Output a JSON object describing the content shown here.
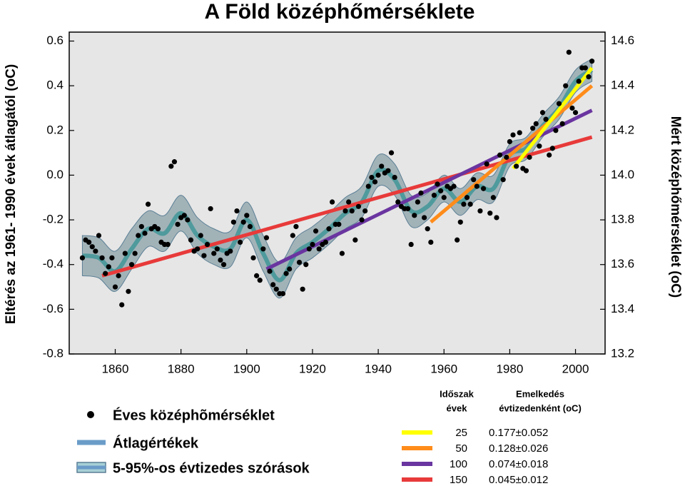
{
  "chart_data": {
    "type": "scatter",
    "title": "A Föld középhőmérséklete",
    "y_label": "Eltérés az 1961- 1990 évek átlagától (oC)",
    "y2_label": "Mért középhőmérséklet (oC)",
    "xlim": [
      1846,
      2009
    ],
    "ylim": [
      -0.8,
      0.64
    ],
    "y2lim": [
      13.2,
      14.64
    ],
    "xticks": [
      1860,
      1880,
      1900,
      1920,
      1940,
      1960,
      1980,
      2000
    ],
    "yticks": [
      0.6,
      0.4,
      0.2,
      {
        "value": 0,
        "label": "0.0"
      },
      -0.2,
      -0.4,
      -0.6,
      -0.8
    ],
    "y2ticks": [
      14.6,
      14.4,
      14.2,
      {
        "value": 14,
        "label": "14.0"
      },
      13.8,
      13.6,
      13.4,
      13.2
    ],
    "series": [
      {
        "name": "Éves középhõmérséklet",
        "color": "#000000",
        "x": [
          1850,
          1851,
          1852,
          1853,
          1854,
          1855,
          1856,
          1857,
          1858,
          1859,
          1860,
          1861,
          1862,
          1863,
          1864,
          1865,
          1866,
          1867,
          1868,
          1869,
          1870,
          1871,
          1872,
          1873,
          1874,
          1875,
          1876,
          1877,
          1878,
          1879,
          1880,
          1881,
          1882,
          1883,
          1884,
          1885,
          1886,
          1887,
          1888,
          1889,
          1890,
          1891,
          1892,
          1893,
          1894,
          1895,
          1896,
          1897,
          1898,
          1899,
          1900,
          1901,
          1902,
          1903,
          1904,
          1905,
          1906,
          1907,
          1908,
          1909,
          1910,
          1911,
          1912,
          1913,
          1914,
          1915,
          1916,
          1917,
          1918,
          1919,
          1920,
          1921,
          1922,
          1923,
          1924,
          1925,
          1926,
          1927,
          1928,
          1929,
          1930,
          1931,
          1932,
          1933,
          1934,
          1935,
          1936,
          1937,
          1938,
          1939,
          1940,
          1941,
          1942,
          1943,
          1944,
          1945,
          1946,
          1947,
          1948,
          1949,
          1950,
          1951,
          1952,
          1953,
          1954,
          1955,
          1956,
          1957,
          1958,
          1959,
          1960,
          1961,
          1962,
          1963,
          1964,
          1965,
          1966,
          1967,
          1968,
          1969,
          1970,
          1971,
          1972,
          1973,
          1974,
          1975,
          1976,
          1977,
          1978,
          1979,
          1980,
          1981,
          1982,
          1983,
          1984,
          1985,
          1986,
          1987,
          1988,
          1989,
          1990,
          1991,
          1992,
          1993,
          1994,
          1995,
          1996,
          1997,
          1998,
          1999,
          2000,
          2001,
          2002,
          2003,
          2004,
          2005
        ],
        "values": [
          -0.37,
          -0.29,
          -0.3,
          -0.32,
          -0.34,
          -0.27,
          -0.37,
          -0.44,
          -0.41,
          -0.37,
          -0.5,
          -0.45,
          -0.58,
          -0.35,
          -0.52,
          -0.4,
          -0.35,
          -0.27,
          -0.23,
          -0.26,
          -0.13,
          -0.24,
          -0.23,
          -0.24,
          -0.3,
          -0.31,
          -0.31,
          0.04,
          0.06,
          -0.22,
          -0.19,
          -0.18,
          -0.2,
          -0.29,
          -0.34,
          -0.33,
          -0.27,
          -0.36,
          -0.31,
          -0.15,
          -0.35,
          -0.33,
          -0.38,
          -0.4,
          -0.35,
          -0.34,
          -0.21,
          -0.16,
          -0.3,
          -0.21,
          -0.18,
          -0.23,
          -0.37,
          -0.45,
          -0.47,
          -0.33,
          -0.28,
          -0.43,
          -0.49,
          -0.51,
          -0.53,
          -0.53,
          -0.44,
          -0.42,
          -0.27,
          -0.23,
          -0.39,
          -0.51,
          -0.4,
          -0.33,
          -0.31,
          -0.25,
          -0.33,
          -0.31,
          -0.3,
          -0.24,
          -0.12,
          -0.22,
          -0.22,
          -0.35,
          -0.16,
          -0.12,
          -0.16,
          -0.29,
          -0.14,
          -0.2,
          -0.16,
          -0.05,
          -0.01,
          -0.03,
          0.0,
          0.04,
          0.01,
          0.02,
          0.1,
          -0.01,
          -0.12,
          -0.14,
          -0.15,
          -0.15,
          -0.31,
          -0.18,
          -0.12,
          -0.08,
          -0.19,
          -0.24,
          -0.3,
          -0.09,
          -0.04,
          -0.07,
          -0.1,
          -0.05,
          -0.06,
          -0.05,
          -0.29,
          -0.21,
          -0.13,
          -0.1,
          -0.13,
          -0.02,
          -0.05,
          -0.16,
          -0.06,
          0.05,
          -0.17,
          -0.1,
          -0.19,
          0.09,
          -0.02,
          0.08,
          0.15,
          0.18,
          0.04,
          0.19,
          0.03,
          0.02,
          0.08,
          0.21,
          0.23,
          0.13,
          0.28,
          0.25,
          0.09,
          0.12,
          0.2,
          0.32,
          0.23,
          0.4,
          0.55,
          0.3,
          0.28,
          0.42,
          0.48,
          0.48,
          0.44,
          0.51
        ]
      }
    ],
    "mean": {
      "name": "Átlagértékek",
      "color": "#4f9a9c",
      "x": [
        1850,
        1855,
        1860,
        1865,
        1870,
        1875,
        1880,
        1885,
        1890,
        1895,
        1900,
        1905,
        1910,
        1915,
        1920,
        1925,
        1930,
        1935,
        1940,
        1945,
        1950,
        1955,
        1960,
        1965,
        1970,
        1975,
        1980,
        1985,
        1990,
        1995,
        2000,
        2005
      ],
      "values": [
        -0.36,
        -0.37,
        -0.43,
        -0.33,
        -0.24,
        -0.26,
        -0.17,
        -0.27,
        -0.32,
        -0.33,
        -0.2,
        -0.35,
        -0.47,
        -0.35,
        -0.3,
        -0.24,
        -0.17,
        -0.12,
        0.02,
        -0.02,
        -0.16,
        -0.14,
        -0.06,
        -0.12,
        -0.05,
        -0.06,
        0.09,
        0.12,
        0.22,
        0.3,
        0.42,
        0.47
      ]
    },
    "band": {
      "name": "5-95%-os évtizedes szórások",
      "color": "#a2b3b8",
      "x": [
        1850,
        1855,
        1860,
        1865,
        1870,
        1875,
        1880,
        1885,
        1890,
        1895,
        1900,
        1905,
        1910,
        1915,
        1920,
        1925,
        1930,
        1935,
        1940,
        1945,
        1950,
        1955,
        1960,
        1965,
        1970,
        1975,
        1980,
        1985,
        1990,
        1995,
        2000,
        2005
      ],
      "lower": [
        -0.45,
        -0.46,
        -0.52,
        -0.42,
        -0.32,
        -0.34,
        -0.25,
        -0.35,
        -0.4,
        -0.41,
        -0.28,
        -0.43,
        -0.55,
        -0.42,
        -0.37,
        -0.31,
        -0.24,
        -0.19,
        -0.05,
        -0.09,
        -0.23,
        -0.2,
        -0.12,
        -0.18,
        -0.11,
        -0.12,
        0.04,
        0.07,
        0.17,
        0.25,
        0.37,
        0.42
      ],
      "upper": [
        -0.27,
        -0.28,
        -0.34,
        -0.24,
        -0.16,
        -0.18,
        -0.09,
        -0.19,
        -0.24,
        -0.25,
        -0.12,
        -0.27,
        -0.39,
        -0.28,
        -0.23,
        -0.17,
        -0.1,
        -0.05,
        0.09,
        0.05,
        -0.09,
        -0.08,
        0.0,
        -0.06,
        0.01,
        0.0,
        0.14,
        0.17,
        0.27,
        0.35,
        0.47,
        0.52
      ]
    },
    "trend_headers": [
      [
        "Időszak",
        "évek"
      ],
      [
        "Emelkedés",
        "évtizedenként (oC)"
      ]
    ],
    "trends": [
      {
        "period": "25",
        "rate": "0.177±0.052",
        "color": "#ffff00",
        "x": [
          1981,
          2005
        ],
        "values": [
          0.03,
          0.48
        ]
      },
      {
        "period": "50",
        "rate": "0.128±0.026",
        "color": "#ff8c1a",
        "x": [
          1956,
          2005
        ],
        "values": [
          -0.21,
          0.4
        ]
      },
      {
        "period": "100",
        "rate": "0.074±0.018",
        "color": "#6a35a0",
        "x": [
          1906,
          2005
        ],
        "values": [
          -0.42,
          0.29
        ]
      },
      {
        "period": "150",
        "rate": "0.045±0.012",
        "color": "#e83a3a",
        "x": [
          1856,
          2005
        ],
        "values": [
          -0.45,
          0.17
        ]
      }
    ]
  }
}
